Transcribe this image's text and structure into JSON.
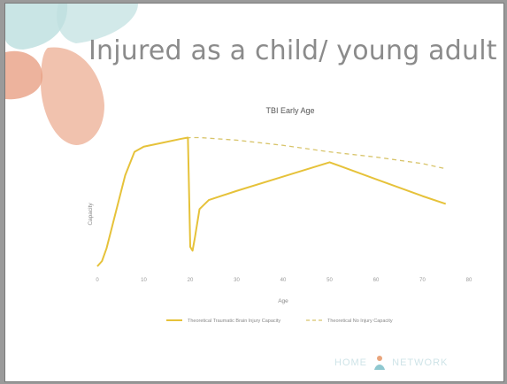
{
  "slide": {
    "title": "Injured as a child/ young adult",
    "logo": {
      "left_text": "HOME",
      "right_text": "NETWORK"
    }
  },
  "colors": {
    "series_solid": "#e6c23a",
    "series_dashed": "#d8c46a",
    "title_text": "#8b8b8b",
    "petal_teal": "#bfe0e0",
    "petal_peach": "#efb7a0",
    "petal_salmon": "#e8a084"
  },
  "chart_data": {
    "type": "line",
    "title": "TBI Early Age",
    "xlabel": "Age",
    "ylabel": "Capacity",
    "xlim": [
      0,
      80
    ],
    "ylim": [
      0,
      100
    ],
    "xticks": [
      "0",
      "10",
      "20",
      "30",
      "40",
      "50",
      "60",
      "70",
      "80"
    ],
    "grid": false,
    "legend": "bottom",
    "series": [
      {
        "name": "Theoretical Traumatic Brain Injury Capacity",
        "style": "solid",
        "x": [
          0,
          1,
          2,
          4,
          6,
          8,
          10,
          14,
          18,
          19.5,
          20,
          20.5,
          21,
          22,
          24,
          30,
          40,
          50,
          60,
          70,
          75
        ],
        "y": [
          0,
          4,
          14,
          42,
          70,
          88,
          92,
          95,
          98,
          99,
          15,
          12,
          22,
          44,
          51,
          58,
          69,
          80,
          67,
          54,
          48
        ]
      },
      {
        "name": "Theoretical No Injury Capacity",
        "style": "dashed",
        "x": [
          0,
          1,
          2,
          4,
          6,
          8,
          10,
          14,
          18,
          20,
          22,
          30,
          40,
          50,
          60,
          70,
          75
        ],
        "y": [
          0,
          4,
          14,
          42,
          70,
          88,
          92,
          95,
          98,
          99,
          99,
          97,
          93,
          88,
          84,
          79,
          75
        ]
      }
    ]
  }
}
